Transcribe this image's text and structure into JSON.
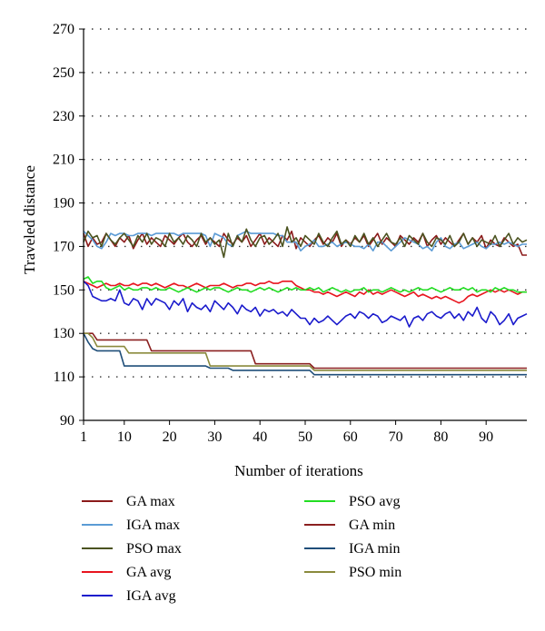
{
  "chart_data": {
    "type": "line",
    "title": "",
    "xlabel": "Number of iterations",
    "ylabel": "Traveled distance",
    "xlim": [
      1,
      99
    ],
    "ylim": [
      90,
      270
    ],
    "x_ticks": [
      1,
      10,
      20,
      30,
      40,
      50,
      60,
      70,
      80,
      90
    ],
    "y_ticks": [
      90,
      110,
      130,
      150,
      170,
      190,
      210,
      230,
      250,
      270
    ],
    "grid": "dotted horizontal",
    "legend_position": "bottom",
    "x": [
      1,
      2,
      3,
      4,
      5,
      6,
      7,
      8,
      9,
      10,
      11,
      12,
      13,
      14,
      15,
      16,
      17,
      18,
      19,
      20,
      21,
      22,
      23,
      24,
      25,
      26,
      27,
      28,
      29,
      30,
      31,
      32,
      33,
      34,
      35,
      36,
      37,
      38,
      39,
      40,
      41,
      42,
      43,
      44,
      45,
      46,
      47,
      48,
      49,
      50,
      51,
      52,
      53,
      54,
      55,
      56,
      57,
      58,
      59,
      60,
      61,
      62,
      63,
      64,
      65,
      66,
      67,
      68,
      69,
      70,
      71,
      72,
      73,
      74,
      75,
      76,
      77,
      78,
      79,
      80,
      81,
      82,
      83,
      84,
      85,
      86,
      87,
      88,
      89,
      90,
      91,
      92,
      93,
      94,
      95,
      96,
      97,
      98,
      99
    ],
    "series": [
      {
        "name": "GA max",
        "color": "#8b1a1a",
        "values": [
          176,
          170,
          174,
          171,
          172,
          176,
          173,
          170,
          174,
          172,
          175,
          169,
          173,
          176,
          171,
          174,
          172,
          170,
          175,
          173,
          171,
          174,
          176,
          172,
          170,
          173,
          175,
          171,
          174,
          172,
          170,
          176,
          173,
          171,
          174,
          172,
          175,
          170,
          173,
          176,
          171,
          174,
          172,
          170,
          175,
          173,
          177,
          169,
          174,
          172,
          170,
          173,
          175,
          171,
          174,
          172,
          176,
          170,
          173,
          171,
          174,
          172,
          175,
          170,
          173,
          176,
          171,
          174,
          172,
          170,
          175,
          173,
          171,
          174,
          172,
          176,
          170,
          173,
          175,
          171,
          174,
          172,
          170,
          173,
          176,
          171,
          174,
          172,
          175,
          169,
          173,
          171,
          170,
          174,
          172,
          170,
          171,
          166,
          166
        ]
      },
      {
        "name": "IGA max",
        "color": "#5b9bd5",
        "values": [
          177,
          175,
          173,
          170,
          169,
          172,
          176,
          175,
          176,
          176,
          175,
          175,
          176,
          176,
          176,
          175,
          176,
          176,
          176,
          176,
          176,
          175,
          176,
          176,
          176,
          176,
          176,
          175,
          170,
          176,
          175,
          174,
          171,
          170,
          175,
          176,
          177,
          176,
          176,
          176,
          176,
          176,
          176,
          175,
          175,
          172,
          172,
          172,
          168,
          170,
          171,
          173,
          170,
          170,
          171,
          172,
          170,
          171,
          172,
          171,
          170,
          170,
          169,
          171,
          168,
          172,
          172,
          170,
          168,
          170,
          172,
          174,
          173,
          172,
          171,
          169,
          170,
          168,
          172,
          174,
          170,
          169,
          171,
          172,
          169,
          170,
          171,
          172,
          170,
          169,
          171,
          171,
          172,
          171,
          172,
          171,
          170,
          171,
          171
        ]
      },
      {
        "name": "PSO max",
        "color": "#4b5320",
        "values": [
          172,
          177,
          174,
          175,
          170,
          176,
          173,
          171,
          174,
          176,
          173,
          170,
          175,
          172,
          176,
          171,
          174,
          173,
          170,
          176,
          172,
          174,
          171,
          175,
          173,
          170,
          176,
          172,
          174,
          171,
          173,
          165,
          176,
          170,
          175,
          172,
          178,
          173,
          170,
          174,
          175,
          171,
          173,
          176,
          170,
          179,
          172,
          174,
          170,
          175,
          173,
          171,
          176,
          172,
          170,
          174,
          177,
          171,
          173,
          170,
          175,
          172,
          176,
          171,
          174,
          170,
          173,
          176,
          172,
          171,
          174,
          170,
          175,
          173,
          171,
          176,
          172,
          170,
          174,
          173,
          171,
          175,
          170,
          172,
          176,
          171,
          174,
          170,
          173,
          172,
          171,
          175,
          170,
          173,
          176,
          171,
          174,
          172,
          173
        ]
      },
      {
        "name": "GA avg",
        "color": "#e8141e",
        "values": [
          154,
          153,
          152,
          151,
          152,
          153,
          152,
          152,
          153,
          152,
          152,
          153,
          152,
          153,
          153,
          152,
          153,
          152,
          151,
          152,
          153,
          152,
          152,
          151,
          152,
          153,
          152,
          151,
          152,
          152,
          152,
          153,
          152,
          151,
          152,
          152,
          153,
          153,
          152,
          153,
          153,
          154,
          153,
          153,
          154,
          154,
          154,
          152,
          151,
          150,
          150,
          149,
          149,
          148,
          149,
          148,
          147,
          148,
          149,
          148,
          147,
          149,
          148,
          150,
          148,
          149,
          148,
          149,
          150,
          149,
          148,
          147,
          148,
          149,
          147,
          148,
          147,
          146,
          147,
          146,
          147,
          146,
          145,
          144,
          145,
          147,
          148,
          147,
          148,
          149,
          150,
          149,
          150,
          149,
          150,
          149,
          148,
          149,
          149
        ]
      },
      {
        "name": "IGA avg",
        "color": "#1a1acc",
        "values": [
          154,
          152,
          147,
          146,
          145,
          145,
          146,
          145,
          150,
          144,
          143,
          146,
          145,
          141,
          146,
          143,
          146,
          145,
          144,
          141,
          145,
          143,
          146,
          140,
          144,
          142,
          141,
          143,
          140,
          145,
          143,
          141,
          144,
          142,
          139,
          143,
          141,
          140,
          142,
          138,
          141,
          140,
          141,
          139,
          140,
          138,
          141,
          139,
          137,
          137,
          134,
          137,
          135,
          136,
          138,
          136,
          134,
          136,
          138,
          139,
          137,
          140,
          139,
          137,
          139,
          138,
          135,
          136,
          138,
          137,
          136,
          138,
          133,
          137,
          138,
          136,
          139,
          140,
          138,
          137,
          139,
          140,
          137,
          139,
          136,
          140,
          138,
          142,
          137,
          135,
          140,
          138,
          134,
          136,
          139,
          134,
          137,
          138,
          139
        ]
      },
      {
        "name": "PSO avg",
        "color": "#22dd22",
        "values": [
          155,
          156,
          153,
          154,
          154,
          151,
          150,
          151,
          152,
          150,
          151,
          150,
          150,
          151,
          151,
          150,
          151,
          150,
          150,
          151,
          150,
          149,
          150,
          151,
          150,
          149,
          150,
          151,
          150,
          151,
          151,
          150,
          149,
          150,
          151,
          150,
          150,
          149,
          150,
          151,
          150,
          151,
          150,
          149,
          150,
          151,
          150,
          151,
          150,
          150,
          151,
          150,
          151,
          149,
          150,
          151,
          150,
          149,
          150,
          149,
          150,
          150,
          151,
          149,
          150,
          150,
          149,
          150,
          151,
          150,
          149,
          150,
          149,
          150,
          151,
          150,
          150,
          151,
          150,
          149,
          150,
          151,
          150,
          150,
          151,
          150,
          151,
          149,
          150,
          150,
          149,
          151,
          150,
          151,
          150,
          150,
          149,
          149,
          149
        ]
      },
      {
        "name": "GA min",
        "color": "#8b2020",
        "values": [
          130,
          130,
          130,
          127,
          127,
          127,
          127,
          127,
          127,
          127,
          127,
          127,
          127,
          127,
          127,
          122,
          122,
          122,
          122,
          122,
          122,
          122,
          122,
          122,
          122,
          122,
          122,
          122,
          122,
          122,
          122,
          122,
          122,
          122,
          122,
          122,
          122,
          122,
          116,
          116,
          116,
          116,
          116,
          116,
          116,
          116,
          116,
          116,
          116,
          116,
          116,
          114,
          114,
          114,
          114,
          114,
          114,
          114,
          114,
          114,
          114,
          114,
          114,
          114,
          114,
          114,
          114,
          114,
          114,
          114,
          114,
          114,
          114,
          114,
          114,
          114,
          114,
          114,
          114,
          114,
          114,
          114,
          114,
          114,
          114,
          114,
          114,
          114,
          114,
          114,
          114,
          114,
          114,
          114,
          114,
          114,
          114,
          114,
          114
        ]
      },
      {
        "name": "IGA min",
        "color": "#1f4e79",
        "values": [
          130,
          126,
          123,
          122,
          122,
          122,
          122,
          122,
          122,
          115,
          115,
          115,
          115,
          115,
          115,
          115,
          115,
          115,
          115,
          115,
          115,
          115,
          115,
          115,
          115,
          115,
          115,
          115,
          114,
          114,
          114,
          114,
          114,
          113,
          113,
          113,
          113,
          113,
          113,
          113,
          113,
          113,
          113,
          113,
          113,
          113,
          113,
          113,
          113,
          113,
          113,
          111,
          111,
          111,
          111,
          111,
          111,
          111,
          111,
          111,
          111,
          111,
          111,
          111,
          111,
          111,
          111,
          111,
          111,
          111,
          111,
          111,
          111,
          111,
          111,
          111,
          111,
          111,
          111,
          111,
          111,
          111,
          111,
          111,
          111,
          111,
          111,
          111,
          111,
          111,
          111,
          111,
          111,
          111,
          111,
          111,
          111,
          111,
          111
        ]
      },
      {
        "name": "PSO min",
        "color": "#8a8a3c",
        "values": [
          130,
          130,
          128,
          124,
          124,
          124,
          124,
          124,
          124,
          124,
          121,
          121,
          121,
          121,
          121,
          121,
          121,
          121,
          121,
          121,
          121,
          121,
          121,
          121,
          121,
          121,
          121,
          121,
          115,
          115,
          115,
          115,
          115,
          115,
          115,
          115,
          115,
          115,
          115,
          115,
          115,
          115,
          115,
          115,
          115,
          115,
          115,
          115,
          115,
          115,
          115,
          113,
          113,
          113,
          113,
          113,
          113,
          113,
          113,
          113,
          113,
          113,
          113,
          113,
          113,
          113,
          113,
          113,
          113,
          113,
          113,
          113,
          113,
          113,
          113,
          113,
          113,
          113,
          113,
          113,
          113,
          113,
          113,
          113,
          113,
          113,
          113,
          113,
          113,
          113,
          113,
          113,
          113,
          113,
          113,
          113,
          113,
          113,
          113
        ]
      }
    ]
  }
}
